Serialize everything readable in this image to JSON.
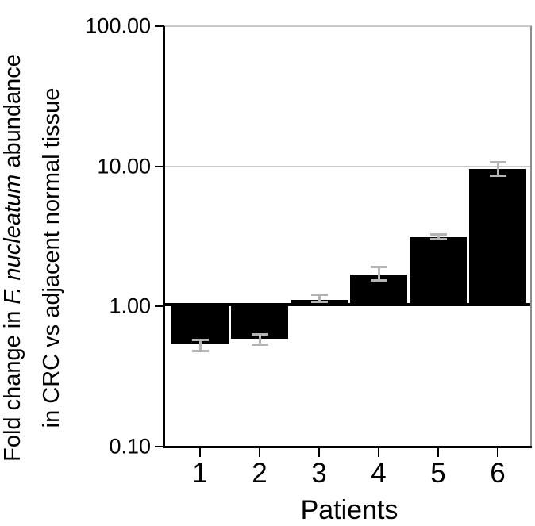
{
  "figure": {
    "xlabel": "Patients",
    "ylabel_line1_prefix": "Fold change in ",
    "ylabel_line1_italic": "F. nucleatum",
    "ylabel_line1_suffix": " abundance",
    "ylabel_line2": "in CRC vs adjacent normal tissue"
  },
  "chart_data": {
    "type": "bar",
    "title": "",
    "xlabel": "Patients",
    "ylabel": "Fold change in F. nucleatum abundance in CRC vs adjacent normal tissue",
    "ylabel_italic_segment": "F. nucleatum",
    "log_scale_y": true,
    "ylim": [
      0.1,
      100
    ],
    "baseline": 1.0,
    "grid": "horizontal-decade-lines",
    "legend_position": "none",
    "y_ticks": [
      {
        "value": 100,
        "label": "100.00"
      },
      {
        "value": 10,
        "label": "10.00"
      },
      {
        "value": 1,
        "label": "1.00"
      },
      {
        "value": 0.1,
        "label": "0.10"
      }
    ],
    "categories": [
      "1",
      "2",
      "3",
      "4",
      "5",
      "6"
    ],
    "series": [
      {
        "name": "Fold change CRC vs adjacent normal tissue",
        "values": [
          0.54,
          0.59,
          1.11,
          1.7,
          3.12,
          9.6
        ],
        "error_low": [
          0.48,
          0.53,
          1.07,
          1.52,
          3.0,
          8.5
        ],
        "error_high": [
          0.58,
          0.64,
          1.22,
          1.93,
          3.28,
          10.8
        ]
      }
    ],
    "colors": {
      "bar": "#000000",
      "error_bar": "#b4b4b4",
      "gridline": "#c9c9c9",
      "axis": "#000000",
      "right_border": "#8e8e8e",
      "background": "#ffffff"
    }
  }
}
